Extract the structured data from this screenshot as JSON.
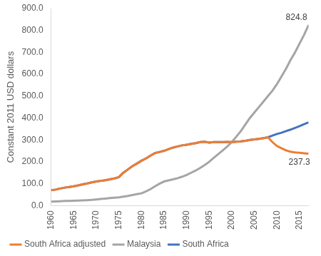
{
  "chart_data": {
    "type": "line",
    "y_label": "Constant 2011 USD dollars",
    "categories": [
      "1960",
      null,
      null,
      null,
      null,
      "1965",
      null,
      null,
      null,
      null,
      "1970",
      null,
      null,
      null,
      null,
      "1975",
      null,
      null,
      null,
      null,
      "1980",
      null,
      null,
      null,
      null,
      "1985",
      null,
      null,
      null,
      null,
      "1990",
      null,
      null,
      null,
      null,
      "1995",
      null,
      null,
      null,
      null,
      "2000",
      null,
      null,
      null,
      null,
      "2005",
      null,
      null,
      null,
      null,
      "2010",
      null,
      null,
      null,
      null,
      "2015",
      null,
      null
    ],
    "series": [
      {
        "name": "South Africa",
        "color": "#4472c4",
        "values": [
          70,
          73,
          78,
          82,
          85,
          88,
          92,
          97,
          101,
          106,
          110,
          113,
          116,
          120,
          124,
          130,
          150,
          165,
          180,
          192,
          205,
          215,
          228,
          240,
          245,
          250,
          258,
          265,
          270,
          275,
          278,
          282,
          285,
          290,
          292,
          288,
          290,
          290,
          290,
          291,
          290,
          292,
          293,
          296,
          300,
          302,
          305,
          308,
          312,
          320,
          327,
          333,
          340,
          347,
          355,
          363,
          372,
          380
        ]
      },
      {
        "name": "South Africa adjusted",
        "color": "#ed7d31",
        "values": [
          70,
          73,
          78,
          82,
          85,
          88,
          92,
          97,
          101,
          106,
          110,
          113,
          116,
          120,
          124,
          130,
          150,
          165,
          180,
          192,
          205,
          215,
          228,
          240,
          245,
          250,
          258,
          265,
          270,
          275,
          278,
          282,
          285,
          290,
          292,
          288,
          290,
          290,
          290,
          291,
          290,
          292,
          293,
          296,
          300,
          302,
          305,
          308,
          312,
          290,
          272,
          262,
          252,
          246,
          243,
          241,
          239,
          237.3
        ]
      },
      {
        "name": "Malaysia",
        "color": "#a5a5a5",
        "values": [
          18,
          19,
          20,
          21,
          21,
          22,
          23,
          24,
          25,
          26,
          28,
          30,
          32,
          34,
          36,
          38,
          41,
          44,
          48,
          52,
          56,
          65,
          75,
          88,
          100,
          110,
          115,
          120,
          125,
          132,
          140,
          150,
          160,
          172,
          185,
          200,
          218,
          235,
          252,
          270,
          290,
          315,
          340,
          370,
          400,
          425,
          450,
          475,
          500,
          525,
          555,
          590,
          625,
          665,
          700,
          740,
          780,
          824.8
        ]
      }
    ],
    "ylim": [
      0,
      900
    ],
    "yticks": [
      {
        "value": 0,
        "label": "0.0"
      },
      {
        "value": 100,
        "label": "100.0"
      },
      {
        "value": 200,
        "label": "200.0"
      },
      {
        "value": 300,
        "label": "300.0"
      },
      {
        "value": 400,
        "label": "400.0"
      },
      {
        "value": 500,
        "label": "500.0"
      },
      {
        "value": 600,
        "label": "600.0"
      },
      {
        "value": 700,
        "label": "700.0"
      },
      {
        "value": 800,
        "label": "800.0"
      },
      {
        "value": 900,
        "label": "900.0"
      }
    ],
    "annotations": [
      {
        "text": "824.8",
        "series": "Malaysia"
      },
      {
        "text": "237.3",
        "series": "South Africa adjusted"
      }
    ],
    "grid": false,
    "legend": "bottom"
  }
}
